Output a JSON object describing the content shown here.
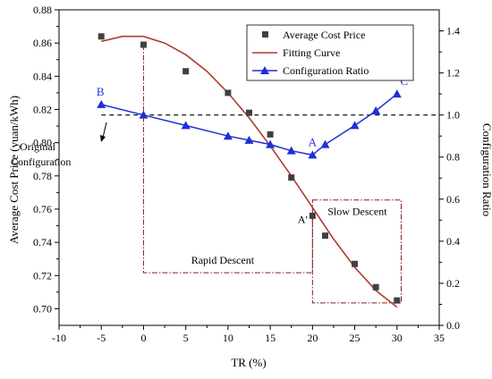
{
  "chart_data": {
    "type": "scatter",
    "xlabel": "TR (%)",
    "ylabel_left": "Average Cost Price (yuan/kWh)",
    "ylabel_right": "Configuration Ratio",
    "xlim": [
      -10,
      35
    ],
    "ylim_left": [
      0.69,
      0.88
    ],
    "ylim_right": [
      0.0,
      1.5
    ],
    "x_ticks": [
      "-10",
      "-5",
      "0",
      "5",
      "10",
      "15",
      "20",
      "25",
      "30",
      "35"
    ],
    "y_left_ticks": [
      "0.70",
      "0.72",
      "0.74",
      "0.76",
      "0.78",
      "0.80",
      "0.82",
      "0.84",
      "0.86",
      "0.88"
    ],
    "y_right_ticks": [
      "0.0",
      "0.2",
      "0.4",
      "0.6",
      "0.8",
      "1.0",
      "1.2",
      "1.4"
    ],
    "legend_position": "top-right",
    "series": [
      {
        "name": "Average Cost Price",
        "kind": "scatter",
        "axis": "left",
        "color": "#404040",
        "x": [
          -5,
          0,
          5,
          10,
          12.5,
          15,
          17.5,
          20,
          21.5,
          25,
          27.5,
          30
        ],
        "y": [
          0.864,
          0.859,
          0.843,
          0.83,
          0.818,
          0.805,
          0.779,
          0.756,
          0.744,
          0.727,
          0.713,
          0.705
        ]
      },
      {
        "name": "Fitting Curve",
        "kind": "line",
        "axis": "left",
        "color": "#b03a2e",
        "x": [
          -5,
          -2.5,
          0,
          2.5,
          5,
          7.5,
          10,
          12.5,
          15,
          17.5,
          20,
          22.5,
          25,
          27.5,
          30
        ],
        "y": [
          0.861,
          0.864,
          0.864,
          0.86,
          0.853,
          0.843,
          0.83,
          0.815,
          0.798,
          0.78,
          0.761,
          0.742,
          0.725,
          0.711,
          0.701
        ]
      },
      {
        "name": "Configuration Ratio",
        "kind": "line-marker",
        "axis": "right",
        "color": "#1f2fd6",
        "x": [
          -5,
          0,
          5,
          10,
          12.5,
          15,
          17.5,
          20,
          21.5,
          25,
          27.5,
          30
        ],
        "y": [
          1.05,
          1.0,
          0.95,
          0.9,
          0.88,
          0.86,
          0.83,
          0.81,
          0.86,
          0.95,
          1.02,
          1.1
        ]
      }
    ],
    "reference_line": {
      "axis": "right",
      "y": 1.0,
      "style": "dashed"
    },
    "annotations": {
      "point_labels": [
        {
          "text": "B",
          "x": -5,
          "axis": "right",
          "y": 1.05
        },
        {
          "text": "A",
          "x": 20,
          "axis": "right",
          "y": 0.81
        },
        {
          "text": "C",
          "x": 30,
          "axis": "right",
          "y": 1.1
        },
        {
          "text": "A'",
          "x": 20,
          "axis": "left",
          "y": 0.756
        }
      ],
      "original_configuration": "Original\nConfiguration",
      "rapid_descent": "Rapid Descent",
      "slow_descent": "Slow Descent"
    }
  }
}
